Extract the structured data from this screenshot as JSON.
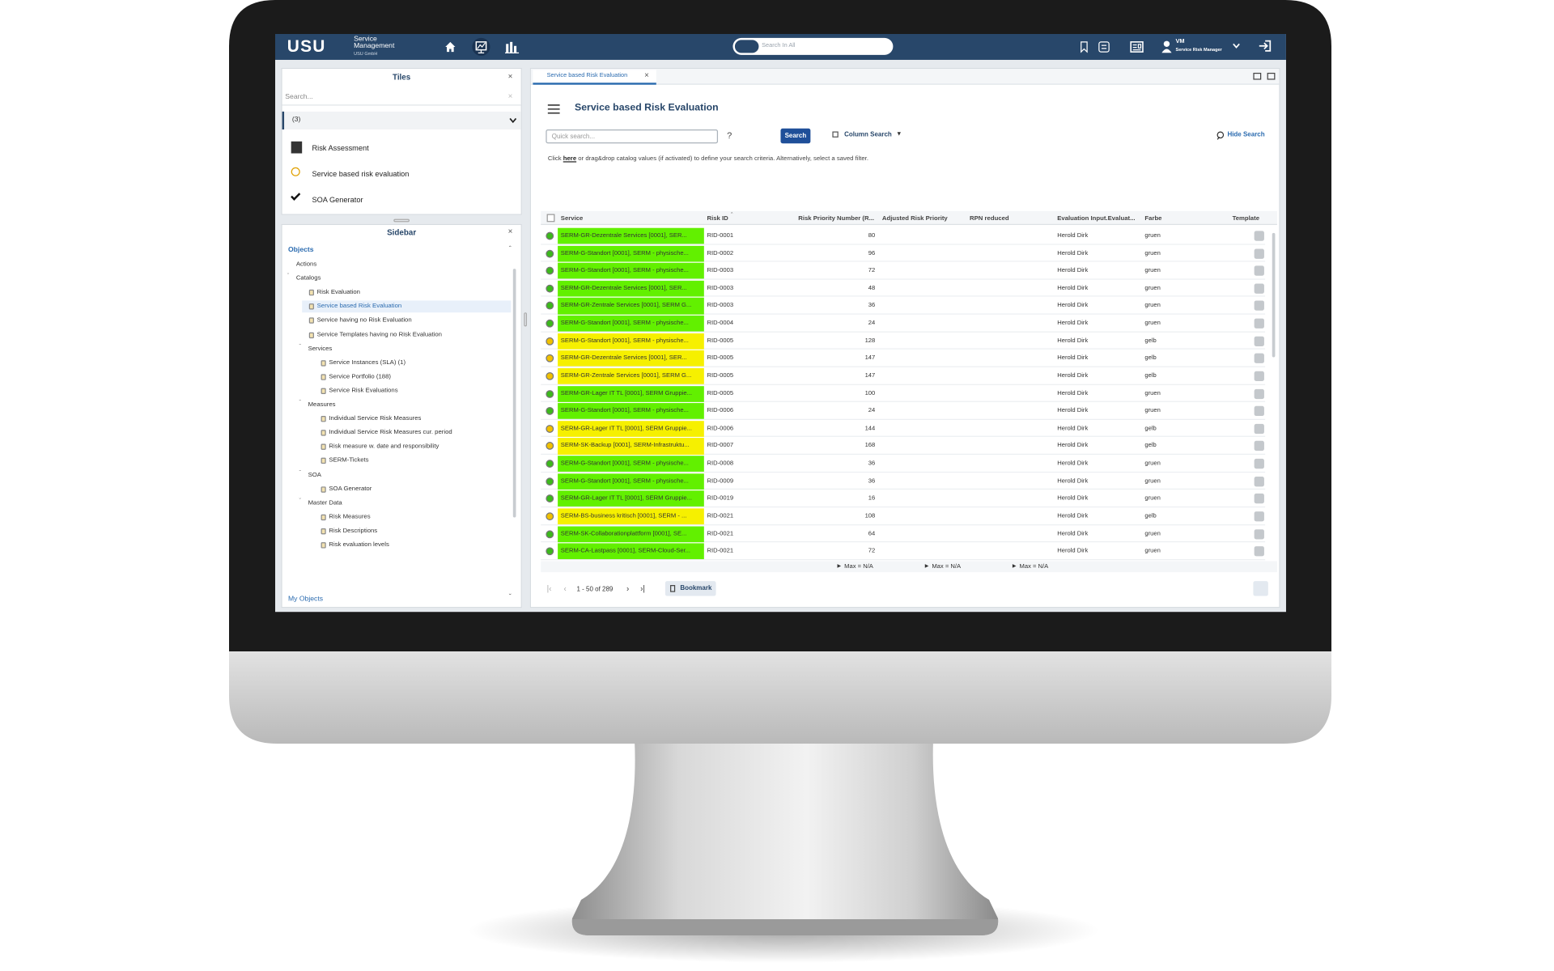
{
  "header": {
    "logo": "USU",
    "product_line1": "Service",
    "product_line2": "Management",
    "company": "USU GmbH",
    "search_placeholder": "Search In All",
    "user_initials": "VM",
    "user_role": "Service Risk Manager"
  },
  "tiles": {
    "title": "Tiles",
    "search_placeholder": "Search...",
    "group": "(3)",
    "items": [
      "Risk Assessment",
      "Service based risk evaluation",
      "SOA Generator"
    ]
  },
  "sidebar": {
    "title": "Sidebar",
    "section": "Objects",
    "footer": "My Objects",
    "tree": [
      {
        "label": "Actions",
        "level": 1
      },
      {
        "label": "Catalogs",
        "level": 1,
        "expanded": true
      },
      {
        "label": "Risk Evaluation",
        "level": 2
      },
      {
        "label": "Service based Risk Evaluation",
        "level": 2,
        "selected": true
      },
      {
        "label": "Service having no Risk Evaluation",
        "level": 2
      },
      {
        "label": "Service Templates having no Risk Evaluation",
        "level": 2
      },
      {
        "label": "Services",
        "level": 2,
        "expanded": true
      },
      {
        "label": "Service Instances (SLA) (1)",
        "level": 3
      },
      {
        "label": "Service Portfolio (188)",
        "level": 3
      },
      {
        "label": "Service Risk Evaluations",
        "level": 3
      },
      {
        "label": "Measures",
        "level": 2,
        "expanded": true
      },
      {
        "label": "Individual Service Risk Measures",
        "level": 3
      },
      {
        "label": "Individual Service Risk Measures cur. period",
        "level": 3
      },
      {
        "label": "Risk measure w. date and responsibility",
        "level": 3
      },
      {
        "label": "SERM-Tickets",
        "level": 3
      },
      {
        "label": "SOA",
        "level": 2,
        "expanded": true
      },
      {
        "label": "SOA Generator",
        "level": 3
      },
      {
        "label": "Master Data",
        "level": 2,
        "expanded": true
      },
      {
        "label": "Risk Measures",
        "level": 3
      },
      {
        "label": "Risk Descriptions",
        "level": 3
      },
      {
        "label": "Risk evaluation levels",
        "level": 3
      }
    ]
  },
  "main": {
    "tab": "Service based Risk Evaluation",
    "title": "Service based Risk Evaluation",
    "quick_search_placeholder": "Quick search...",
    "help": "?",
    "search_button": "Search",
    "column_search": "Column Search",
    "hide_search": "Hide Search",
    "hint_before": "Click",
    "hint_link": "here",
    "hint_after": "or drag&drop catalog values (if activated) to define your search criteria. Alternatively, select a saved filter.",
    "table": {
      "columns": [
        "Service",
        "Risk ID",
        "Risk Priority Number (R...",
        "Adjusted Risk Priority",
        "RPN reduced",
        "Evaluation Input.Evaluat...",
        "Farbe",
        "Template"
      ],
      "status_colors": {
        "gruen": "#62f000",
        "gelb": "#f6f000"
      },
      "dot_colors": {
        "gruen": "#3cb81c",
        "gelb": "#f0c000"
      },
      "rows": [
        {
          "service": "SERM-GR-Dezentrale Services [0001], SER...",
          "risk_id": "RID-0001",
          "rpn": 80,
          "evaluator": "Herold Dirk",
          "farbe": "gruen"
        },
        {
          "service": "SERM-G-Standort [0001], SERM - physische...",
          "risk_id": "RID-0002",
          "rpn": 96,
          "evaluator": "Herold Dirk",
          "farbe": "gruen"
        },
        {
          "service": "SERM-G-Standort [0001], SERM - physische...",
          "risk_id": "RID-0003",
          "rpn": 72,
          "evaluator": "Herold Dirk",
          "farbe": "gruen"
        },
        {
          "service": "SERM-GR-Dezentrale Services [0001], SER...",
          "risk_id": "RID-0003",
          "rpn": 48,
          "evaluator": "Herold Dirk",
          "farbe": "gruen"
        },
        {
          "service": "SERM-GR-Zentrale Services [0001], SERM G...",
          "risk_id": "RID-0003",
          "rpn": 36,
          "evaluator": "Herold Dirk",
          "farbe": "gruen"
        },
        {
          "service": "SERM-G-Standort [0001], SERM - physische...",
          "risk_id": "RID-0004",
          "rpn": 24,
          "evaluator": "Herold Dirk",
          "farbe": "gruen"
        },
        {
          "service": "SERM-G-Standort [0001], SERM - physische...",
          "risk_id": "RID-0005",
          "rpn": 128,
          "evaluator": "Herold Dirk",
          "farbe": "gelb"
        },
        {
          "service": "SERM-GR-Dezentrale Services [0001], SER...",
          "risk_id": "RID-0005",
          "rpn": 147,
          "evaluator": "Herold Dirk",
          "farbe": "gelb"
        },
        {
          "service": "SERM-GR-Zentrale Services [0001], SERM G...",
          "risk_id": "RID-0005",
          "rpn": 147,
          "evaluator": "Herold Dirk",
          "farbe": "gelb"
        },
        {
          "service": "SERM-GR-Lager IT TL [0001], SERM Gruppie...",
          "risk_id": "RID-0005",
          "rpn": 100,
          "evaluator": "Herold Dirk",
          "farbe": "gruen"
        },
        {
          "service": "SERM-G-Standort [0001], SERM - physische...",
          "risk_id": "RID-0006",
          "rpn": 24,
          "evaluator": "Herold Dirk",
          "farbe": "gruen"
        },
        {
          "service": "SERM-GR-Lager IT TL [0001], SERM Gruppie...",
          "risk_id": "RID-0006",
          "rpn": 144,
          "evaluator": "Herold Dirk",
          "farbe": "gelb"
        },
        {
          "service": "SERM-SK-Backup [0001], SERM-Infrastruktu...",
          "risk_id": "RID-0007",
          "rpn": 168,
          "evaluator": "Herold Dirk",
          "farbe": "gelb"
        },
        {
          "service": "SERM-G-Standort [0001], SERM - physische...",
          "risk_id": "RID-0008",
          "rpn": 36,
          "evaluator": "Herold Dirk",
          "farbe": "gruen"
        },
        {
          "service": "SERM-G-Standort [0001], SERM - physische...",
          "risk_id": "RID-0009",
          "rpn": 36,
          "evaluator": "Herold Dirk",
          "farbe": "gruen"
        },
        {
          "service": "SERM-GR-Lager IT TL [0001], SERM Gruppie...",
          "risk_id": "RID-0019",
          "rpn": 16,
          "evaluator": "Herold Dirk",
          "farbe": "gruen"
        },
        {
          "service": "SERM-BS-business kritisch [0001], SERM - ...",
          "risk_id": "RID-0021",
          "rpn": 108,
          "evaluator": "Herold Dirk",
          "farbe": "gelb"
        },
        {
          "service": "SERM-SK-Collaborationplattform [0001], SE...",
          "risk_id": "RID-0021",
          "rpn": 64,
          "evaluator": "Herold Dirk",
          "farbe": "gruen"
        },
        {
          "service": "SERM-CA-Lastpass [0001], SERM-Cloud-Ser...",
          "risk_id": "RID-0021",
          "rpn": 72,
          "evaluator": "Herold Dirk",
          "farbe": "gruen"
        }
      ],
      "footer": [
        "Max = N/A",
        "Max = N/A",
        "Max = N/A"
      ]
    },
    "pager": "1 - 50 of 289",
    "bookmark": "Bookmark"
  }
}
